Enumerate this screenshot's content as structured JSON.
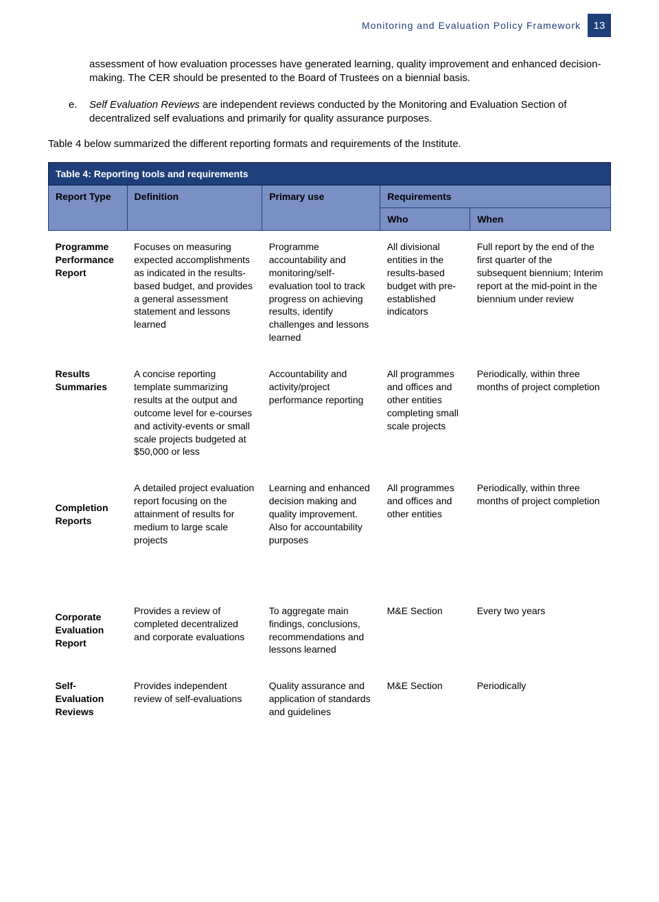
{
  "colors": {
    "brand_blue": "#1f3f7a",
    "header_lilac": "#7a8fc4",
    "text": "#000000",
    "white": "#ffffff"
  },
  "header": {
    "title": "Monitoring and Evaluation Policy Framework",
    "page_number": "13"
  },
  "paragraph1": "assessment of how evaluation processes have generated learning, quality improvement and enhanced decision-making. The CER should be presented to the Board of Trustees on a biennial basis.",
  "list_e_marker": "e.",
  "list_e_title": "Self Evaluation Reviews",
  "list_e_body": " are independent reviews conducted by the Monitoring and Evaluation Section of decentralized self evaluations and primarily for quality assurance purposes.",
  "summary_line": "Table 4 below summarized the different reporting formats and requirements of the Institute.",
  "table": {
    "title": "Table 4: Reporting tools and requirements",
    "columns": {
      "type": "Report Type",
      "definition": "Definition",
      "primary_use": "Primary use",
      "requirements": "Requirements",
      "who": "Who",
      "when": "When"
    },
    "rows": [
      {
        "type": "Programme Performance Report",
        "definition": "Focuses on measuring expected accomplishments as indicated in the results-based budget, and provides a general assessment statement and lessons learned",
        "primary_use": "Programme accountability and monitoring/self-evaluation tool to track progress on achieving results, identify challenges and lessons learned",
        "who": "All divisional entities in the results-based budget with pre-established indicators",
        "when": "Full report by the end of the first quarter of the subsequent biennium; Interim report at the mid-point in the biennium under review"
      },
      {
        "type": "Results Summaries",
        "definition": "A concise reporting template summarizing results at the output and outcome level for e-courses and activity-events or small scale projects budgeted at $50,000 or less",
        "primary_use": "Accountability and activity/project performance reporting",
        "who": "All programmes and offices and other entities completing small scale projects",
        "when": "Periodically, within three months of project completion"
      },
      {
        "type": "Completion Reports",
        "definition": "A detailed project evaluation report focusing on the attainment of results for medium to large scale projects",
        "primary_use": "Learning and enhanced decision making and quality improvement. Also for accountability purposes",
        "who": "All programmes and offices and other entities",
        "when": "Periodically, within three months of project completion"
      },
      {
        "type": "Corporate Evaluation Report",
        "definition": "Provides a review of completed decentralized and corporate evaluations",
        "primary_use": "To aggregate main findings, conclusions, recommendations and lessons learned",
        "who": "M&E Section",
        "when": "Every two years"
      },
      {
        "type": "Self-Evaluation Reviews",
        "definition": "Provides independent review of self-evaluations",
        "primary_use": "Quality assurance and application of standards and guidelines",
        "who": "M&E Section",
        "when": "Periodically"
      }
    ]
  }
}
